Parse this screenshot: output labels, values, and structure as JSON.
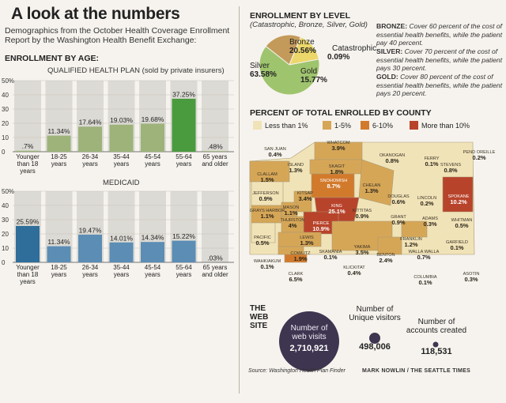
{
  "title": "A look at the numbers",
  "subtitle": "Demographics from the October Health Coverage Enrollment Report by the Washington Health Benefit Exchange:",
  "enrollment_by_age": {
    "heading": "ENROLLMENT BY AGE:"
  },
  "enrollment_by_level": {
    "heading": "ENROLLMENT BY LEVEL",
    "subheading": "(Catastrophic, Bronze, Silver, Gold)",
    "definitions": {
      "bronze": {
        "label": "BRONZE:",
        "text": "Cover 60 percent of the cost of essential health benefits, while the patient pay 40 percent."
      },
      "silver": {
        "label": "SILVER:",
        "text": "Cover 70 percent of the cost of essential health benefits, while the patient pays 30 percent."
      },
      "gold": {
        "label": "GOLD:",
        "text": "Cover 80 percent of the cost of essential health benefits, while the patient pays 20 percent."
      }
    }
  },
  "county": {
    "heading": "PERCENT OF TOTAL ENROLLED BY COUNTY",
    "legend": [
      {
        "label": "Less than 1%",
        "color": "#f1e3b8"
      },
      {
        "label": "1-5%",
        "color": "#d6a657"
      },
      {
        "label": "6-10%",
        "color": "#d27a2c"
      },
      {
        "label": "More than 10%",
        "color": "#b8432b"
      }
    ],
    "counties": [
      {
        "name": "SAN JUAN",
        "value": "0.4%"
      },
      {
        "name": "WHATCOM",
        "value": "3.9%"
      },
      {
        "name": "OKANOGAN",
        "value": "0.8%"
      },
      {
        "name": "FERRY",
        "value": "0.1%"
      },
      {
        "name": "STEVENS",
        "value": "0.8%"
      },
      {
        "name": "PEND OREILLE",
        "value": "0.2%"
      },
      {
        "name": "ISLAND",
        "value": "1.3%"
      },
      {
        "name": "SKAGIT",
        "value": "1.8%"
      },
      {
        "name": "CLALLAM",
        "value": "1.5%"
      },
      {
        "name": "SNOHOMISH",
        "value": "8.7%"
      },
      {
        "name": "CHELAN",
        "value": "1.3%"
      },
      {
        "name": "DOUGLAS",
        "value": "0.6%"
      },
      {
        "name": "LINCOLN",
        "value": "0.2%"
      },
      {
        "name": "SPOKANE",
        "value": "10.2%"
      },
      {
        "name": "JEFFERSON",
        "value": "0.9%"
      },
      {
        "name": "KITSAP",
        "value": "3.4%"
      },
      {
        "name": "KING",
        "value": "25.1%"
      },
      {
        "name": "GRAYS HARBOR",
        "value": "1.1%"
      },
      {
        "name": "MASON",
        "value": "1.1%"
      },
      {
        "name": "KITTITAS",
        "value": "0.9%"
      },
      {
        "name": "GRANT",
        "value": "0.9%"
      },
      {
        "name": "ADAMS",
        "value": "0.3%"
      },
      {
        "name": "WHITMAN",
        "value": "0.5%"
      },
      {
        "name": "THURSTON",
        "value": "4%"
      },
      {
        "name": "PIERCE",
        "value": "10.9%"
      },
      {
        "name": "PACIFIC",
        "value": "0.5%"
      },
      {
        "name": "LEWIS",
        "value": "1.3%"
      },
      {
        "name": "YAKIMA",
        "value": "3.5%"
      },
      {
        "name": "FRANKLIN",
        "value": "1.2%"
      },
      {
        "name": "GARFIELD",
        "value": "0.1%"
      },
      {
        "name": "WAHKIAKUM",
        "value": "0.1%"
      },
      {
        "name": "COWLITZ",
        "value": "1.9%"
      },
      {
        "name": "SKAMANIA",
        "value": "0.1%"
      },
      {
        "name": "BENTON",
        "value": "2.4%"
      },
      {
        "name": "WALLA WALLA",
        "value": "0.7%"
      },
      {
        "name": "CLARK",
        "value": "6.5%"
      },
      {
        "name": "KLICKITAT",
        "value": "0.4%"
      },
      {
        "name": "COLUMBIA",
        "value": "0.1%"
      },
      {
        "name": "ASOTIN",
        "value": "0.3%"
      }
    ]
  },
  "web_site": {
    "heading_line1": "THE",
    "heading_line2": "WEB",
    "heading_line3": "SITE",
    "visits_label_1": "Number of",
    "visits_label_2": "web visits",
    "visits_value": "2,710,921",
    "unique_label_1": "Number of",
    "unique_label_2": "Unique visitors",
    "unique_value": "498,006",
    "accounts_label_1": "Number of",
    "accounts_label_2": "accounts created",
    "accounts_value": "118,531"
  },
  "source": "Source: Washington Health Plan Finder",
  "byline": "MARK NOWLIN / THE SEATTLE TIMES",
  "chart_data": [
    {
      "type": "bar",
      "title": "QUALIFIED HEALTH PLAN (sold by private insurers)",
      "categories": [
        "Younger than 18 years",
        "18-25 years",
        "26-34 years",
        "35-44 years",
        "45-54 years",
        "55-64 years",
        "65 years and older"
      ],
      "category_lines": [
        [
          "Younger",
          "than 18",
          "years"
        ],
        [
          "18-25",
          "years"
        ],
        [
          "26-34",
          "years"
        ],
        [
          "35-44",
          "years"
        ],
        [
          "45-54",
          "years"
        ],
        [
          "55-64",
          "years"
        ],
        [
          "65 years",
          "and older"
        ]
      ],
      "values": [
        0.7,
        11.34,
        17.64,
        19.03,
        19.68,
        37.25,
        0.48
      ],
      "labels": [
        ".7%",
        "11.34%",
        "17.64%",
        "19.03%",
        "19.68%",
        "37.25%",
        ".48%"
      ],
      "colors": [
        "#9db37a",
        "#9db37a",
        "#9db37a",
        "#9db37a",
        "#9db37a",
        "#4a9a3e",
        "#9db37a"
      ],
      "yticks": [
        "50%",
        "40",
        "30",
        "20",
        "10",
        "0"
      ],
      "ylim": [
        0,
        50
      ]
    },
    {
      "type": "bar",
      "title": "MEDICAID",
      "categories": [
        "Younger than 18 years",
        "18-25 years",
        "26-34 years",
        "35-44 years",
        "45-54 years",
        "55-64 years",
        "65 years and older"
      ],
      "category_lines": [
        [
          "Younger",
          "than 18",
          "years"
        ],
        [
          "18-25",
          "years"
        ],
        [
          "26-34",
          "years"
        ],
        [
          "35-44",
          "years"
        ],
        [
          "45-54",
          "years"
        ],
        [
          "55-64",
          "years"
        ],
        [
          "65 years",
          "and older"
        ]
      ],
      "values": [
        25.59,
        11.34,
        19.47,
        14.01,
        14.34,
        15.22,
        0.03
      ],
      "labels": [
        "25.59%",
        "11.34%",
        "19.47%",
        "14.01%",
        "14.34%",
        "15.22%",
        ".03%"
      ],
      "colors": [
        "#2f6e9a",
        "#5b8db5",
        "#5b8db5",
        "#5b8db5",
        "#5b8db5",
        "#5b8db5",
        "#5b8db5"
      ],
      "yticks": [
        "50%",
        "40",
        "30",
        "20",
        "10",
        "0"
      ],
      "ylim": [
        0,
        50
      ]
    },
    {
      "type": "pie",
      "title": "ENROLLMENT BY LEVEL",
      "slices": [
        {
          "name": "Silver",
          "value": 63.58,
          "label": "63.58%",
          "color": "#9fc46e"
        },
        {
          "name": "Gold",
          "value": 15.77,
          "label": "15.77%",
          "color": "#ecd76a"
        },
        {
          "name": "Catastrophic",
          "value": 0.09,
          "label": "0.09%",
          "color": "#e4d9b4"
        },
        {
          "name": "Bronze",
          "value": 20.56,
          "label": "20.56%",
          "color": "#c49a5b"
        }
      ]
    }
  ]
}
